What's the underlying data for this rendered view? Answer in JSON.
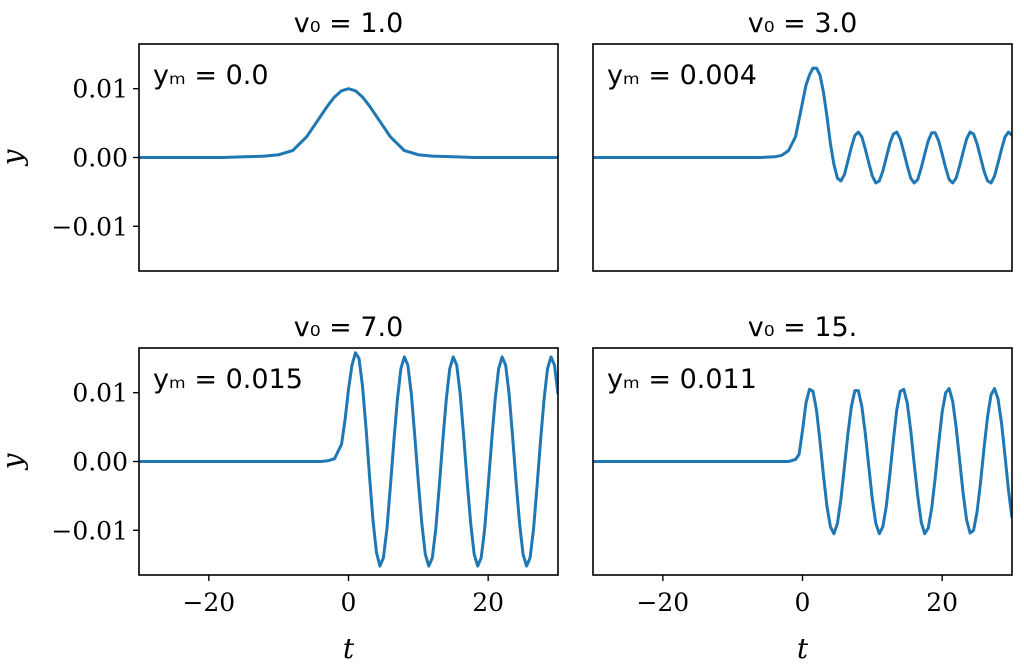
{
  "chart_data": [
    {
      "type": "line",
      "title": "v₀ = 1.0",
      "annotation": "yₘ = 0.0",
      "xlabel": "",
      "ylabel": "y",
      "xlim": [
        -30,
        30
      ],
      "ylim": [
        -0.0165,
        0.0165
      ],
      "xticks": [],
      "yticks": [
        {
          "value": 0.01,
          "label": "0.01"
        },
        {
          "value": 0.0,
          "label": "0.00"
        },
        {
          "value": -0.01,
          "label": "−0.01"
        }
      ],
      "color": "#1f77b4",
      "series": [
        {
          "x": [
            -30,
            -24,
            -18,
            -15,
            -12,
            -10,
            -8,
            -6,
            -5,
            -4,
            -3,
            -2,
            -1,
            0,
            1,
            2,
            3,
            4,
            5,
            6,
            8,
            10,
            12,
            15,
            18,
            24,
            30
          ],
          "y": [
            0,
            0,
            0.0,
            0.0001,
            0.0002,
            0.0004,
            0.001,
            0.003,
            0.0045,
            0.006,
            0.0075,
            0.0088,
            0.0097,
            0.01,
            0.0097,
            0.0088,
            0.0075,
            0.006,
            0.0045,
            0.003,
            0.001,
            0.0004,
            0.0002,
            0.0001,
            0.0,
            0,
            0
          ]
        }
      ]
    },
    {
      "type": "line",
      "title": "v₀ = 3.0",
      "annotation": "yₘ = 0.004",
      "xlabel": "",
      "ylabel": "",
      "xlim": [
        -30,
        30
      ],
      "ylim": [
        -0.0165,
        0.0165
      ],
      "xticks": [],
      "yticks": [],
      "color": "#1f77b4",
      "series": [
        {
          "x": [
            -30,
            -20,
            -10,
            -6,
            -4,
            -3,
            -2,
            -1,
            0,
            0.5,
            1,
            1.5,
            2,
            2.5,
            3,
            3.5,
            4,
            4.5,
            5,
            5.5,
            6,
            6.5,
            7,
            7.5,
            8,
            8.5,
            9,
            9.5,
            10,
            10.5,
            11,
            11.5,
            12,
            12.5,
            13,
            13.5,
            14,
            14.5,
            15,
            15.5,
            16,
            16.5,
            17,
            17.5,
            18,
            18.5,
            19,
            19.5,
            20,
            20.5,
            21,
            21.5,
            22,
            22.5,
            23,
            23.5,
            24,
            24.5,
            25,
            25.5,
            26,
            26.5,
            27,
            27.5,
            28,
            28.5,
            29,
            29.5,
            30
          ],
          "y": [
            0,
            0,
            0,
            0,
            0.0001,
            0.0003,
            0.001,
            0.003,
            0.008,
            0.0105,
            0.012,
            0.013,
            0.013,
            0.012,
            0.0095,
            0.006,
            0.002,
            -0.001,
            -0.003,
            -0.0034,
            -0.0025,
            -0.0005,
            0.0015,
            0.0032,
            0.0037,
            0.003,
            0.0012,
            -0.0008,
            -0.0027,
            -0.0037,
            -0.0034,
            -0.002,
            0.0,
            0.002,
            0.0034,
            0.0037,
            0.0027,
            0.0008,
            -0.0012,
            -0.003,
            -0.0037,
            -0.0032,
            -0.0015,
            0.0005,
            0.0024,
            0.0036,
            0.0036,
            0.0024,
            0.0005,
            -0.0015,
            -0.0032,
            -0.0037,
            -0.003,
            -0.0012,
            0.0008,
            0.0027,
            0.0037,
            0.0034,
            0.002,
            0.0,
            -0.002,
            -0.0034,
            -0.0037,
            -0.0027,
            -0.0008,
            0.0012,
            0.003,
            0.0037,
            0.0032
          ]
        }
      ]
    },
    {
      "type": "line",
      "title": "v₀ = 7.0",
      "annotation": "yₘ = 0.015",
      "xlabel": "t",
      "ylabel": "y",
      "xlim": [
        -30,
        30
      ],
      "ylim": [
        -0.0165,
        0.0165
      ],
      "xticks": [
        {
          "value": -20,
          "label": "−20"
        },
        {
          "value": 0,
          "label": "0"
        },
        {
          "value": 20,
          "label": "20"
        }
      ],
      "yticks": [
        {
          "value": 0.01,
          "label": "0.01"
        },
        {
          "value": 0.0,
          "label": "0.00"
        },
        {
          "value": -0.01,
          "label": "−0.01"
        }
      ],
      "color": "#1f77b4",
      "series": [
        {
          "x": [
            -30,
            -20,
            -10,
            -4,
            -3,
            -2,
            -1,
            -0.5,
            0,
            0.5,
            1,
            1.5,
            2,
            2.5,
            3,
            3.5,
            4,
            4.5,
            5,
            5.5,
            6,
            6.5,
            7,
            7.5,
            8,
            8.5,
            9,
            9.5,
            10,
            10.5,
            11,
            11.5,
            12,
            12.5,
            13,
            13.5,
            14,
            14.5,
            15,
            15.5,
            16,
            16.5,
            17,
            17.5,
            18,
            18.5,
            19,
            19.5,
            20,
            20.5,
            21,
            21.5,
            22,
            22.5,
            23,
            23.5,
            24,
            24.5,
            25,
            25.5,
            26,
            26.5,
            27,
            27.5,
            28,
            28.5,
            29,
            29.5,
            30
          ],
          "y": [
            0,
            0,
            0,
            0,
            0.0001,
            0.0004,
            0.0025,
            0.006,
            0.0105,
            0.014,
            0.0158,
            0.015,
            0.011,
            0.005,
            -0.002,
            -0.0085,
            -0.0132,
            -0.0152,
            -0.014,
            -0.0098,
            -0.0036,
            0.003,
            0.009,
            0.0135,
            0.0152,
            0.014,
            0.0098,
            0.0036,
            -0.003,
            -0.009,
            -0.0135,
            -0.0152,
            -0.014,
            -0.0098,
            -0.0036,
            0.003,
            0.009,
            0.0135,
            0.0152,
            0.014,
            0.0098,
            0.0036,
            -0.003,
            -0.009,
            -0.0135,
            -0.0152,
            -0.014,
            -0.0098,
            -0.0036,
            0.003,
            0.009,
            0.0135,
            0.0152,
            0.014,
            0.0098,
            0.0036,
            -0.003,
            -0.009,
            -0.0135,
            -0.0152,
            -0.014,
            -0.0098,
            -0.0036,
            0.003,
            0.009,
            0.0135,
            0.0152,
            0.014,
            0.0098
          ]
        }
      ]
    },
    {
      "type": "line",
      "title": "v₀ = 15.",
      "annotation": "yₘ = 0.011",
      "xlabel": "t",
      "ylabel": "",
      "xlim": [
        -30,
        30
      ],
      "ylim": [
        -0.0165,
        0.0165
      ],
      "xticks": [
        {
          "value": -20,
          "label": "−20"
        },
        {
          "value": 0,
          "label": "0"
        },
        {
          "value": 20,
          "label": "20"
        }
      ],
      "yticks": [],
      "color": "#1f77b4",
      "series": [
        {
          "x": [
            -30,
            -20,
            -10,
            -2,
            -1,
            -0.5,
            0,
            0.5,
            1,
            1.5,
            2,
            2.5,
            3,
            3.5,
            4,
            4.5,
            5,
            5.5,
            6,
            6.5,
            7,
            7.5,
            8,
            8.5,
            9,
            9.5,
            10,
            10.5,
            11,
            11.5,
            12,
            12.5,
            13,
            13.5,
            14,
            14.5,
            15,
            15.5,
            16,
            16.5,
            17,
            17.5,
            18,
            18.5,
            19,
            19.5,
            20,
            20.5,
            21,
            21.5,
            22,
            22.5,
            23,
            23.5,
            24,
            24.5,
            25,
            25.5,
            26,
            26.5,
            27,
            27.5,
            28,
            28.5,
            29,
            29.5,
            30
          ],
          "y": [
            0,
            0,
            0,
            0,
            0.0003,
            0.001,
            0.0045,
            0.0085,
            0.0105,
            0.0102,
            0.0075,
            0.003,
            -0.002,
            -0.0065,
            -0.0095,
            -0.0105,
            -0.009,
            -0.0055,
            -0.0008,
            0.004,
            0.008,
            0.0103,
            0.0103,
            0.008,
            0.004,
            -0.0008,
            -0.0055,
            -0.009,
            -0.0105,
            -0.0095,
            -0.0065,
            -0.002,
            0.003,
            0.0075,
            0.0102,
            0.0105,
            0.0085,
            0.0045,
            -0.0004,
            -0.005,
            -0.0088,
            -0.0105,
            -0.0097,
            -0.0068,
            -0.0024,
            0.0026,
            0.0072,
            0.01,
            0.0106,
            0.0088,
            0.005,
            0.0002,
            -0.0046,
            -0.0085,
            -0.0104,
            -0.01,
            -0.0073,
            -0.003,
            0.002,
            0.0065,
            0.0097,
            0.0106,
            0.0091,
            0.0056,
            0.0008,
            -0.0042,
            -0.0082
          ]
        }
      ]
    }
  ]
}
